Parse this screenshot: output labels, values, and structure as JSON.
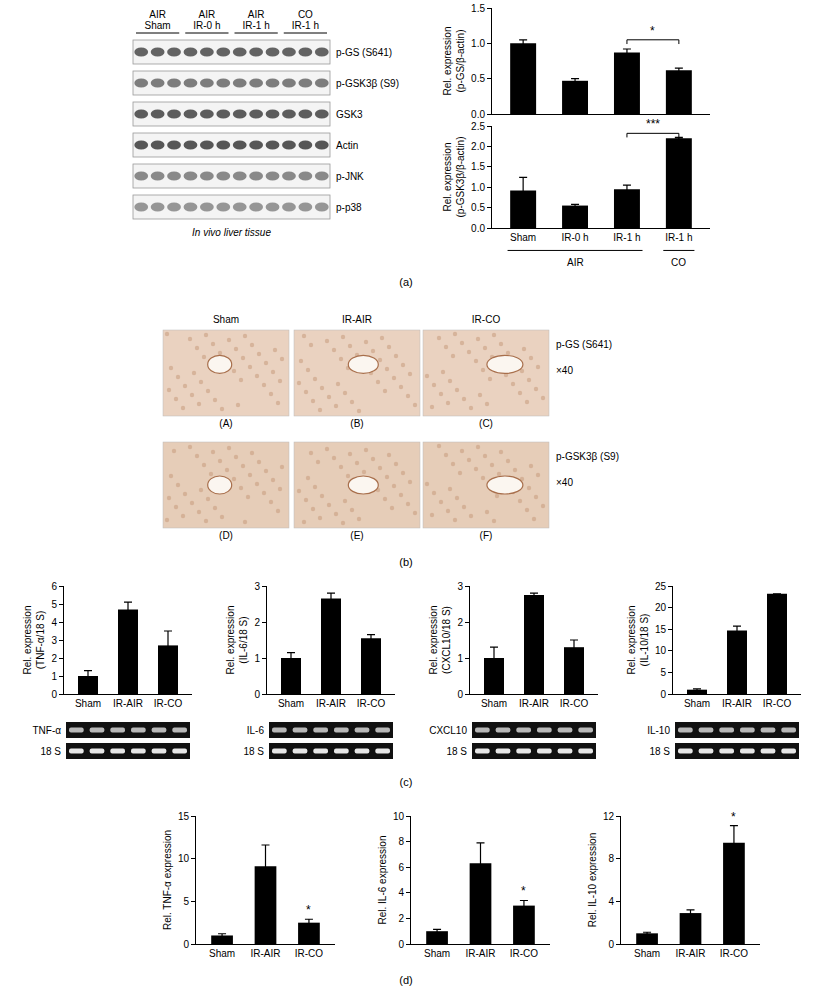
{
  "chart_data": [
    {
      "type": "bar",
      "ylabel": [
        "Rel. expression",
        "(p-GS/β-actin)"
      ],
      "categories": [
        "Sham",
        "IR-0 h",
        "IR-1 h",
        "IR-1 h"
      ],
      "values": [
        1.0,
        0.47,
        0.87,
        0.62
      ],
      "errors": [
        0.05,
        0.03,
        0.05,
        0.03
      ],
      "color": "#000000",
      "ylim": [
        0,
        1.5
      ],
      "yticks": [
        {
          "value": 0,
          "label": "0.0"
        },
        {
          "value": 0.5,
          "label": "0.5"
        },
        {
          "value": 1,
          "label": "1.0"
        },
        {
          "value": 1.5,
          "label": "1.5"
        }
      ],
      "tick_labels": "y",
      "brackets": [
        {
          "from": 2,
          "to": 3,
          "y": 1.05,
          "text": "*"
        }
      ]
    },
    {
      "type": "bar",
      "ylabel": [
        "Rel. expression",
        "(p-GSK3β/β-actin)"
      ],
      "categories": [
        "Sham",
        "IR-0 h",
        "IR-1 h",
        "IR-1 h"
      ],
      "values": [
        0.92,
        0.55,
        0.95,
        2.2
      ],
      "errors": [
        0.32,
        0.03,
        0.1,
        0.02
      ],
      "color": "#000000",
      "ylim": [
        0,
        2.5
      ],
      "yticks": [
        {
          "value": 0,
          "label": "0.0"
        },
        {
          "value": 0.5,
          "label": "0.5"
        },
        {
          "value": 1,
          "label": "1.0"
        },
        {
          "value": 1.5,
          "label": "1.5"
        },
        {
          "value": 2,
          "label": "2.0"
        },
        {
          "value": 2.5,
          "label": "2.5"
        }
      ],
      "groups": [
        {
          "label": "AIR",
          "start": 0,
          "end": 2
        },
        {
          "label": "CO",
          "start": 3,
          "end": 3
        }
      ],
      "brackets": [
        {
          "from": 2,
          "to": 3,
          "y": 2.32,
          "text": "***"
        }
      ]
    },
    {
      "type": "bar",
      "ylabel": [
        "Rel. expression",
        "(TNF-α/18 S)"
      ],
      "categories": [
        "Sham",
        "IR-AIR",
        "IR-CO"
      ],
      "values": [
        1.0,
        4.7,
        2.7
      ],
      "errors": [
        0.3,
        0.4,
        0.8
      ],
      "color": "#000000",
      "ylim": [
        0,
        6
      ],
      "yticks": [
        0,
        1,
        2,
        3,
        4,
        5,
        6
      ]
    },
    {
      "type": "bar",
      "ylabel": [
        "Rel. expression",
        "(IL-6/18 S)"
      ],
      "categories": [
        "Sham",
        "IR-AIR",
        "IR-CO"
      ],
      "values": [
        1.0,
        2.65,
        1.55
      ],
      "errors": [
        0.15,
        0.15,
        0.1
      ],
      "color": "#000000",
      "ylim": [
        0,
        3
      ],
      "yticks": [
        0,
        1,
        2,
        3
      ]
    },
    {
      "type": "bar",
      "ylabel": [
        "Rel. expression",
        "(CXCL10/18 S)"
      ],
      "categories": [
        "Sham",
        "IR-AIR",
        "IR-CO"
      ],
      "values": [
        1.0,
        2.75,
        1.3
      ],
      "errors": [
        0.3,
        0.05,
        0.2
      ],
      "color": "#000000",
      "ylim": [
        0,
        3
      ],
      "yticks": [
        0,
        1,
        2,
        3
      ]
    },
    {
      "type": "bar",
      "ylabel": [
        "Rel. expression",
        "(IL-10/18 S)"
      ],
      "categories": [
        "Sham",
        "IR-AIR",
        "IR-CO"
      ],
      "values": [
        1.0,
        14.7,
        23.2
      ],
      "errors": [
        0.2,
        1.0,
        null
      ],
      "color": "#000000",
      "ylim": [
        0,
        25
      ],
      "yticks": [
        0,
        5,
        10,
        15,
        20,
        25
      ]
    },
    {
      "type": "bar",
      "ylabel": [
        "Rel. TNF-α expression"
      ],
      "categories": [
        "Sham",
        "IR-AIR",
        "IR-CO"
      ],
      "values": [
        1.0,
        9.1,
        2.5
      ],
      "errors": [
        0.2,
        2.5,
        0.4
      ],
      "color": "#000000",
      "ylim": [
        0,
        15
      ],
      "yticks": [
        0,
        5,
        10,
        15
      ],
      "marks": [
        {
          "index": 2,
          "text": "*"
        }
      ]
    },
    {
      "type": "bar",
      "ylabel": [
        "Rel. IL-6 expression"
      ],
      "categories": [
        "Sham",
        "IR-AIR",
        "IR-CO"
      ],
      "values": [
        1.0,
        6.3,
        3.0
      ],
      "errors": [
        0.15,
        1.6,
        0.4
      ],
      "color": "#000000",
      "ylim": [
        0,
        10
      ],
      "yticks": [
        0,
        2,
        4,
        6,
        8,
        10
      ],
      "marks": [
        {
          "index": 2,
          "text": "*"
        }
      ]
    },
    {
      "type": "bar",
      "ylabel": [
        "Rel. IL-10 expression"
      ],
      "categories": [
        "Sham",
        "IR-AIR",
        "IR-CO"
      ],
      "values": [
        1.0,
        2.9,
        9.5
      ],
      "errors": [
        0.1,
        0.3,
        1.6
      ],
      "color": "#000000",
      "ylim": [
        0,
        12
      ],
      "yticks": [
        0,
        4,
        8,
        12
      ],
      "marks": [
        {
          "index": 2,
          "text": "*"
        }
      ]
    }
  ],
  "blot": {
    "lanes": [
      {
        "lines": [
          "AIR",
          "Sham"
        ]
      },
      {
        "lines": [
          "AIR",
          "IR-0 h"
        ]
      },
      {
        "lines": [
          "AIR",
          "IR-1 h"
        ]
      },
      {
        "lines": [
          "CO",
          "IR-1 h"
        ]
      }
    ],
    "rows": [
      "p-GS (S641)",
      "p-GSK3β (S9)",
      "GSK3",
      "Actin",
      "p-JNK",
      "p-p38"
    ],
    "caption": "In vivo liver tissue"
  },
  "histology": {
    "columns": [
      "Sham",
      "IR-AIR",
      "IR-CO"
    ],
    "rows": [
      {
        "stain": "p-GS (S641)",
        "magnification": "×40",
        "panels": [
          "(A)",
          "(B)",
          "(C)"
        ]
      },
      {
        "stain": "p-GSK3β (S9)",
        "magnification": "×40",
        "panels": [
          "(D)",
          "(E)",
          "(F)"
        ]
      }
    ]
  },
  "gels": [
    {
      "rows": [
        "TNF-α",
        "18 S"
      ]
    },
    {
      "rows": [
        "IL-6",
        "18 S"
      ]
    },
    {
      "rows": [
        "CXCL10",
        "18 S"
      ]
    },
    {
      "rows": [
        "IL-10",
        "18 S"
      ]
    }
  ],
  "panel_labels": [
    "(a)",
    "(b)",
    "(c)",
    "(d)"
  ]
}
